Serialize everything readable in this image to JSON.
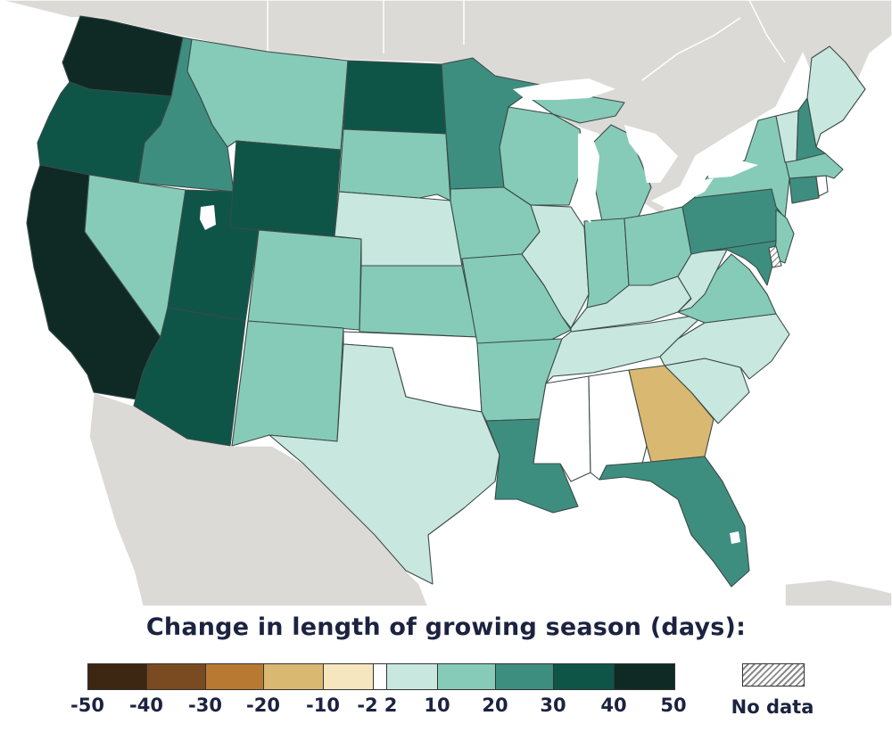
{
  "legend": {
    "title": "Change in length of growing season (days):",
    "ticks": [
      "-50",
      "-40",
      "-30",
      "-20",
      "-10",
      "-2",
      "2",
      "10",
      "20",
      "30",
      "40",
      "50"
    ],
    "bins": [
      {
        "range": "-50 to -40",
        "color": "#3d2612"
      },
      {
        "range": "-40 to -30",
        "color": "#7a4a21"
      },
      {
        "range": "-30 to -20",
        "color": "#b87a33"
      },
      {
        "range": "-20 to -10",
        "color": "#d9b872"
      },
      {
        "range": "-10 to -2",
        "color": "#f5e6bf"
      },
      {
        "range": "-2 to 2",
        "color": "#ffffff"
      },
      {
        "range": "2 to 10",
        "color": "#c8e8df"
      },
      {
        "range": "10 to 20",
        "color": "#86cbb7"
      },
      {
        "range": "20 to 30",
        "color": "#3e8e80"
      },
      {
        "range": "30 to 40",
        "color": "#0e5548"
      },
      {
        "range": "40 to 50",
        "color": "#0f2a25"
      }
    ],
    "no_data_label": "No data"
  },
  "colors": {
    "background_land": "#dcdad6",
    "water": "#ffffff",
    "state_border": "#3b4a47",
    "title_text": "#1c2340"
  },
  "states": [
    {
      "name": "WA",
      "bin": "40 to 50"
    },
    {
      "name": "OR",
      "bin": "30 to 40"
    },
    {
      "name": "CA",
      "bin": "40 to 50"
    },
    {
      "name": "ID",
      "bin": "20 to 30"
    },
    {
      "name": "NV",
      "bin": "10 to 20"
    },
    {
      "name": "UT",
      "bin": "30 to 40"
    },
    {
      "name": "AZ",
      "bin": "30 to 40"
    },
    {
      "name": "MT",
      "bin": "10 to 20"
    },
    {
      "name": "WY",
      "bin": "30 to 40"
    },
    {
      "name": "CO",
      "bin": "10 to 20"
    },
    {
      "name": "NM",
      "bin": "10 to 20"
    },
    {
      "name": "ND",
      "bin": "30 to 40"
    },
    {
      "name": "SD",
      "bin": "10 to 20"
    },
    {
      "name": "NE",
      "bin": "2 to 10"
    },
    {
      "name": "KS",
      "bin": "10 to 20"
    },
    {
      "name": "OK",
      "bin": "-2 to 2"
    },
    {
      "name": "TX",
      "bin": "2 to 10"
    },
    {
      "name": "MN",
      "bin": "20 to 30"
    },
    {
      "name": "IA",
      "bin": "10 to 20"
    },
    {
      "name": "MO",
      "bin": "10 to 20"
    },
    {
      "name": "AR",
      "bin": "10 to 20"
    },
    {
      "name": "LA",
      "bin": "20 to 30"
    },
    {
      "name": "WI",
      "bin": "10 to 20"
    },
    {
      "name": "IL",
      "bin": "2 to 10"
    },
    {
      "name": "MI",
      "bin": "10 to 20"
    },
    {
      "name": "IN",
      "bin": "10 to 20"
    },
    {
      "name": "OH",
      "bin": "10 to 20"
    },
    {
      "name": "KY",
      "bin": "2 to 10"
    },
    {
      "name": "TN",
      "bin": "2 to 10"
    },
    {
      "name": "MS",
      "bin": "-2 to 2"
    },
    {
      "name": "AL",
      "bin": "-2 to 2"
    },
    {
      "name": "GA",
      "bin": "-20 to -10"
    },
    {
      "name": "FL",
      "bin": "20 to 30"
    },
    {
      "name": "SC",
      "bin": "2 to 10"
    },
    {
      "name": "NC",
      "bin": "2 to 10"
    },
    {
      "name": "VA",
      "bin": "10 to 20"
    },
    {
      "name": "WV",
      "bin": "2 to 10"
    },
    {
      "name": "PA",
      "bin": "20 to 30"
    },
    {
      "name": "NY",
      "bin": "10 to 20"
    },
    {
      "name": "NJ",
      "bin": "10 to 20"
    },
    {
      "name": "DE",
      "bin": "No data"
    },
    {
      "name": "MD",
      "bin": "20 to 30"
    },
    {
      "name": "CT",
      "bin": "20 to 30"
    },
    {
      "name": "RI",
      "bin": "-2 to 2"
    },
    {
      "name": "MA",
      "bin": "10 to 20"
    },
    {
      "name": "VT",
      "bin": "2 to 10"
    },
    {
      "name": "NH",
      "bin": "20 to 30"
    },
    {
      "name": "ME",
      "bin": "2 to 10"
    }
  ]
}
